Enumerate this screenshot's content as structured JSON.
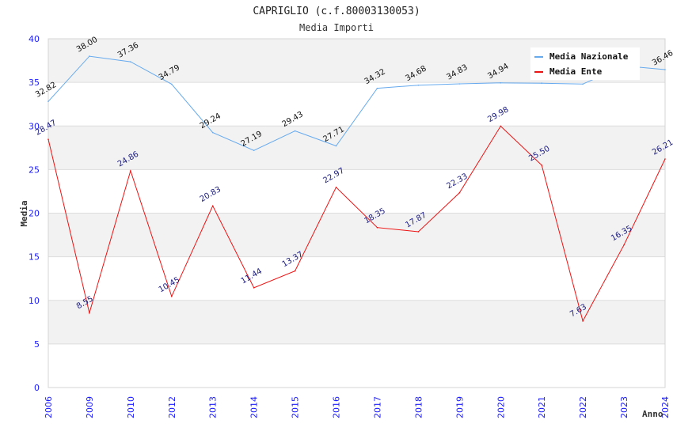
{
  "chart_data": {
    "type": "line",
    "title": "CAPRIGLIO (c.f.80003130053)",
    "subtitle": "Media Importi",
    "xlabel": "Anno",
    "ylabel": "Media",
    "ylim": [
      0,
      40
    ],
    "yticks": [
      "0",
      "5",
      "10",
      "15",
      "20",
      "25",
      "30",
      "35",
      "40"
    ],
    "grid": true,
    "legend_position": "top-right",
    "categories": [
      "2006",
      "2009",
      "2010",
      "2012",
      "2013",
      "2014",
      "2015",
      "2016",
      "2017",
      "2018",
      "2019",
      "2020",
      "2021",
      "2022",
      "2023",
      "2024"
    ],
    "series": [
      {
        "name": "Media Nazionale",
        "color": "#66aaee",
        "values": [
          32.82,
          38.0,
          37.36,
          34.79,
          29.24,
          27.19,
          29.43,
          27.71,
          34.32,
          34.68,
          34.83,
          34.94,
          34.9,
          34.8,
          36.9,
          36.46
        ],
        "labels": [
          "32.82",
          "38.00",
          "37.36",
          "34.79",
          "29.24",
          "27.19",
          "29.43",
          "27.71",
          "34.32",
          "34.68",
          "34.83",
          "34.94",
          "",
          "",
          "",
          "36.46"
        ]
      },
      {
        "name": "Media Ente",
        "color": "#ee1111",
        "values": [
          28.47,
          8.55,
          24.86,
          10.45,
          20.83,
          11.44,
          13.37,
          22.97,
          18.35,
          17.87,
          22.33,
          29.98,
          25.5,
          7.63,
          16.35,
          26.21
        ],
        "labels": [
          "28.47",
          "8.55",
          "24.86",
          "10.45",
          "20.83",
          "11.44",
          "13.37",
          "22.97",
          "18.35",
          "17.87",
          "22.33",
          "29.98",
          "25.50",
          "7.63",
          "16.35",
          "26.21"
        ]
      }
    ]
  }
}
